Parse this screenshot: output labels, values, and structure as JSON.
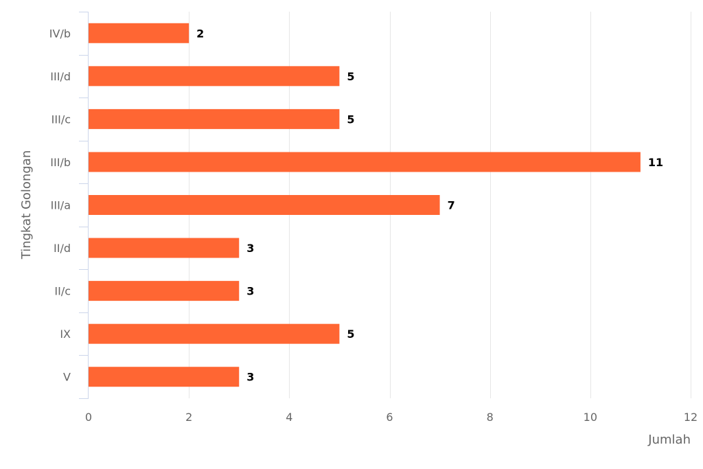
{
  "chart_data": {
    "type": "bar",
    "orientation": "horizontal",
    "categories": [
      "IV/b",
      "III/d",
      "III/c",
      "III/b",
      "III/a",
      "II/d",
      "II/c",
      "IX",
      "V"
    ],
    "values": [
      2,
      5,
      5,
      11,
      7,
      3,
      3,
      5,
      3
    ],
    "data_labels": [
      "2",
      "5",
      "5",
      "11",
      "7",
      "3",
      "3",
      "5",
      "3"
    ],
    "xlabel": "Jumlah",
    "ylabel": "Tingkat Golongan",
    "xlim": [
      0,
      12
    ],
    "xticks": [
      "0",
      "2",
      "4",
      "6",
      "8",
      "10",
      "12"
    ],
    "xtick_values": [
      0,
      2,
      4,
      6,
      8,
      10,
      12
    ],
    "grid": "vertical",
    "bar_color": "#ff6633",
    "grid_color": "#e6e6e6",
    "axis_color": "#ccd6eb",
    "text_color": "#666666"
  }
}
